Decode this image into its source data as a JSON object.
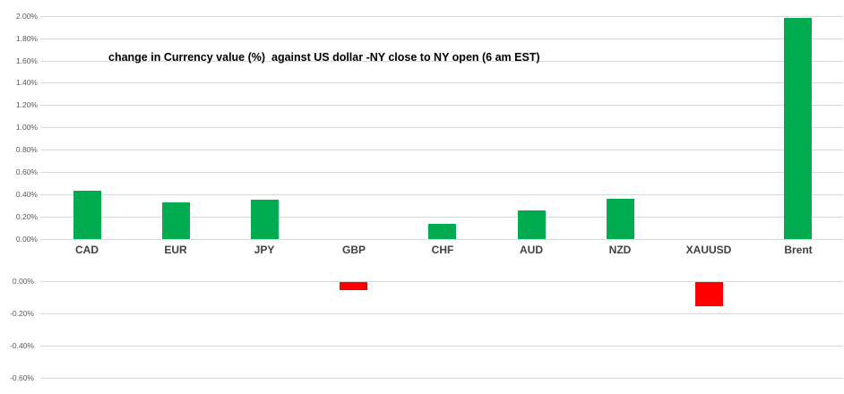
{
  "chart_data": {
    "type": "bar",
    "title": "change in Currency value (%)  against US dollar -NY close to NY open (6 am EST)",
    "categories": [
      "CAD",
      "EUR",
      "JPY",
      "GBP",
      "CHF",
      "AUD",
      "NZD",
      "XAUUSD",
      "Brent"
    ],
    "values": [
      0.43,
      0.33,
      0.35,
      -0.05,
      0.14,
      0.26,
      0.36,
      -0.15,
      1.98
    ],
    "unit": "%",
    "ylim": [
      -0.6,
      2.0
    ],
    "y_tick_step": 0.2,
    "grid": true,
    "legend": false,
    "y_ticks_positive": [
      "2.00%",
      "1.80%",
      "1.60%",
      "1.40%",
      "1.20%",
      "1.00%",
      "0.80%",
      "0.60%",
      "0.40%",
      "0.20%",
      "0.00%"
    ],
    "y_ticks_negative": [
      "0.00%",
      "-0.20%",
      "-0.40%",
      "-0.60%"
    ],
    "colors": {
      "positive_bar": "#00AC4F",
      "negative_bar": "#FF0000",
      "gridline": "#D9D9D9",
      "tick_label": "#595959",
      "category_label": "#404040",
      "title": "#000000",
      "background": "#FFFFFF"
    }
  }
}
